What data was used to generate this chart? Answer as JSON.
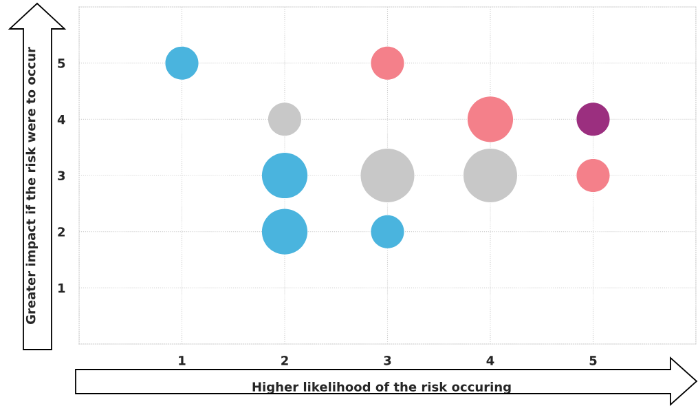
{
  "chart_data": {
    "type": "bubble",
    "xlabel": "Higher likelihood of the risk occuring",
    "ylabel": "Greater impact if the risk were to occur",
    "x": [
      1,
      3,
      2,
      4,
      5,
      2,
      3,
      4,
      5,
      2,
      3
    ],
    "values": [
      5,
      5,
      4,
      4,
      4,
      3,
      3,
      3,
      3,
      2,
      2
    ],
    "sizes": [
      0.38,
      0.38,
      0.38,
      0.72,
      0.38,
      0.72,
      1,
      1,
      0.38,
      0.72,
      0.38
    ],
    "colors": [
      "#4ab4de",
      "#f4808a",
      "#c8c8c8",
      "#f4808a",
      "#9b2f7f",
      "#4ab4de",
      "#c8c8c8",
      "#c8c8c8",
      "#f4808a",
      "#4ab4de",
      "#4ab4de"
    ],
    "xlim": [
      0,
      6
    ],
    "ylim": [
      0,
      6
    ],
    "xticks": [
      {
        "value": 0,
        "label": null
      },
      1,
      2,
      3,
      4,
      5,
      {
        "value": 6,
        "label": null
      }
    ],
    "yticks": [
      {
        "value": 0,
        "label": null
      },
      1,
      2,
      3,
      4,
      5,
      {
        "value": 6,
        "label": null
      }
    ],
    "grid": true
  }
}
